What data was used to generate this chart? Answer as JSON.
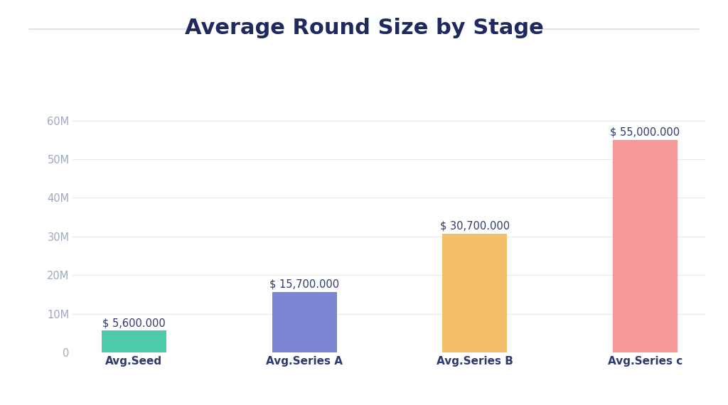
{
  "title": "Average Round Size by Stage",
  "categories": [
    "Avg.Seed",
    "Avg.Series A",
    "Avg.Series B",
    "Avg.Series c"
  ],
  "values": [
    5600000,
    15700000,
    30700000,
    55000000
  ],
  "bar_colors": [
    "#4ECBA8",
    "#7B85D4",
    "#F5BE6A",
    "#F89898"
  ],
  "bar_labels": [
    "$ 5,600.000",
    "$ 15,700.000",
    "$ 30,700.000",
    "$ 55,000.000"
  ],
  "ylim": [
    0,
    65000000
  ],
  "yticks": [
    0,
    10000000,
    20000000,
    30000000,
    40000000,
    50000000,
    60000000
  ],
  "ytick_labels": [
    "0",
    "10M",
    "20M",
    "30M",
    "40M",
    "50M",
    "60M"
  ],
  "background_color": "#ffffff",
  "title_color": "#1E2A5E",
  "title_fontsize": 22,
  "label_color": "#2E3A6E",
  "tick_color": "#9EA8C0",
  "xlabel_fontsize": 11,
  "bar_label_fontsize": 10.5,
  "bar_width": 0.38,
  "title_line_color": "#DCDCE8",
  "grid_color": "#EAEAEA"
}
